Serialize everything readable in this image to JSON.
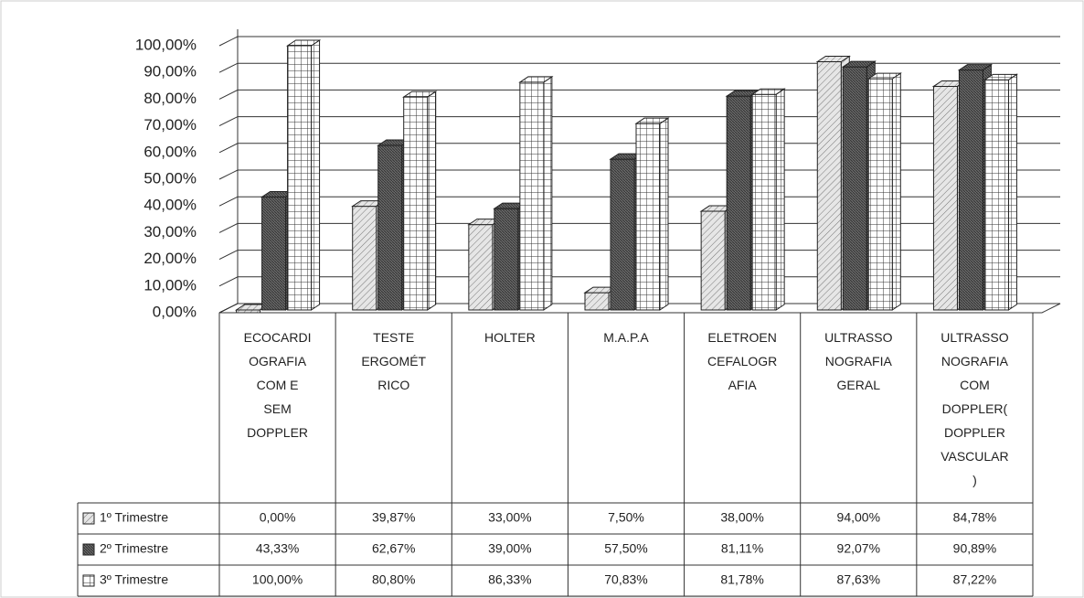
{
  "chart_data": {
    "type": "bar3d",
    "categories": [
      "ECOCARDI\nOGRAFIA\nCOM E\nSEM\nDOPPLER",
      "TESTE\nERGOMÉT\nRICO",
      "HOLTER",
      "M.A.P.A",
      "ELETROEN\nCEFALOGR\nAFIA",
      "ULTRASSO\nNOGRAFIA\nGERAL",
      "ULTRASSO\nNOGRAFIA\nCOM\nDOPPLER(\nDOPPLER\nVASCULAR\n)"
    ],
    "series": [
      {
        "name": "1º Trimestre",
        "color": "#e6e6e6",
        "values": [
          0,
          39.87,
          33,
          7.5,
          38,
          94,
          84.78
        ],
        "value_labels": [
          "0,00%",
          "39,87%",
          "33,00%",
          "7,50%",
          "38,00%",
          "94,00%",
          "84,78%"
        ]
      },
      {
        "name": "2º Trimestre",
        "color": "#6a6a6a",
        "values": [
          43.33,
          62.67,
          39,
          57.5,
          81.11,
          92.07,
          90.89
        ],
        "value_labels": [
          "43,33%",
          "62,67%",
          "39,00%",
          "57,50%",
          "81,11%",
          "92,07%",
          "90,89%"
        ]
      },
      {
        "name": "3º Trimestre",
        "color": "#ffffff",
        "values": [
          100,
          80.8,
          86.33,
          70.83,
          81.78,
          87.63,
          87.22
        ],
        "value_labels": [
          "100,00%",
          "80,80%",
          "86,33%",
          "70,83%",
          "81,78%",
          "87,63%",
          "87,22%"
        ]
      }
    ],
    "ylim": [
      0,
      100
    ],
    "yticks": [
      {
        "value": 0,
        "label": "0,00%"
      },
      {
        "value": 10,
        "label": "10,00%"
      },
      {
        "value": 20,
        "label": "20,00%"
      },
      {
        "value": 30,
        "label": "30,00%"
      },
      {
        "value": 40,
        "label": "40,00%"
      },
      {
        "value": 50,
        "label": "50,00%"
      },
      {
        "value": 60,
        "label": "60,00%"
      },
      {
        "value": 70,
        "label": "70,00%"
      },
      {
        "value": 80,
        "label": "80,00%"
      },
      {
        "value": 90,
        "label": "90,00%"
      },
      {
        "value": 100,
        "label": "100,00%"
      }
    ],
    "grid": true
  }
}
